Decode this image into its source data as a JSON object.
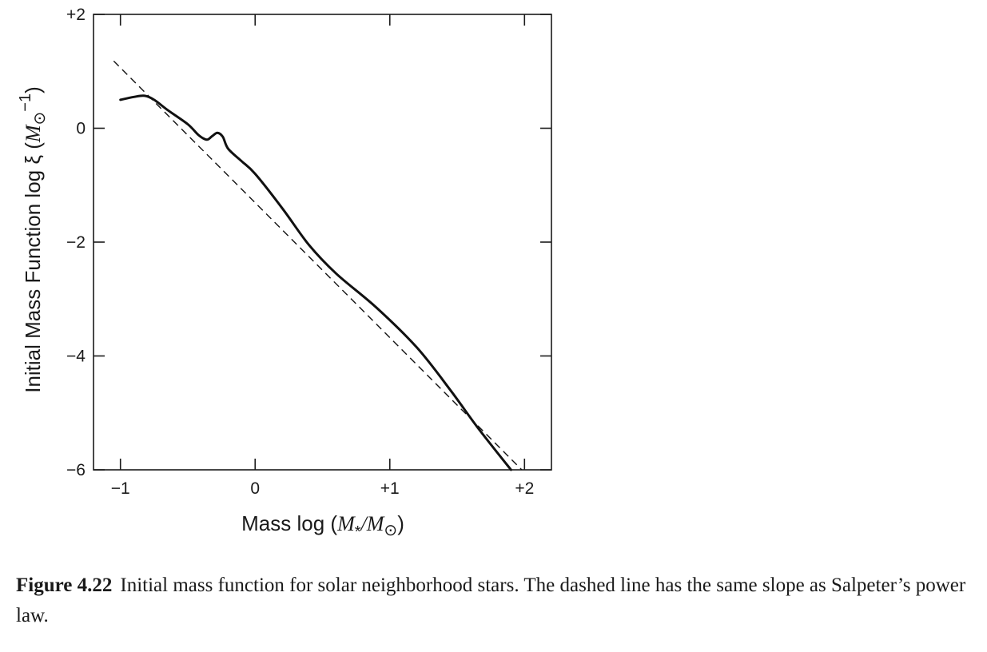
{
  "chart_data": {
    "type": "line",
    "xlabel_text": "Mass   log (",
    "xlabel_math": "M",
    "xlabel_sub": "*",
    "xlabel_math2": "/M",
    "xlabel_sun": "⊙",
    "xlabel_close": ")",
    "ylabel_text": "Initial Mass Function   log ξ   (",
    "ylabel_math": "M",
    "ylabel_sun": "⊙",
    "ylabel_sup": "−1",
    "ylabel_close": ")",
    "xlim": [
      -1.2,
      2.2
    ],
    "ylim": [
      -6,
      2
    ],
    "x_ticks": [
      -1,
      0,
      1,
      2
    ],
    "x_tick_labels": [
      "−1",
      "0",
      "+1",
      "+2"
    ],
    "y_ticks": [
      -6,
      -4,
      -2,
      0,
      2
    ],
    "y_tick_labels": [
      "−6",
      "−4",
      "−2",
      "0",
      "+2"
    ],
    "grid": false,
    "series": [
      {
        "style": "solid",
        "x": [
          -1.0,
          -0.9,
          -0.82,
          -0.75,
          -0.65,
          -0.5,
          -0.42,
          -0.36,
          -0.32,
          -0.28,
          -0.24,
          -0.2,
          -0.1,
          0.0,
          0.2,
          0.4,
          0.6,
          0.9,
          1.2,
          1.45,
          1.65,
          1.9
        ],
        "y": [
          0.5,
          0.55,
          0.57,
          0.5,
          0.32,
          0.07,
          -0.12,
          -0.2,
          -0.14,
          -0.08,
          -0.15,
          -0.36,
          -0.58,
          -0.8,
          -1.4,
          -2.05,
          -2.55,
          -3.15,
          -3.85,
          -4.6,
          -5.25,
          -6.0
        ]
      },
      {
        "style": "dashed",
        "x": [
          -1.05,
          1.98
        ],
        "y": [
          1.18,
          -6.0
        ]
      }
    ]
  },
  "caption": {
    "label": "Figure 4.22",
    "text": "Initial mass function for solar neighborhood stars.  The dashed line has the same slope as Salpeter’s power law."
  }
}
